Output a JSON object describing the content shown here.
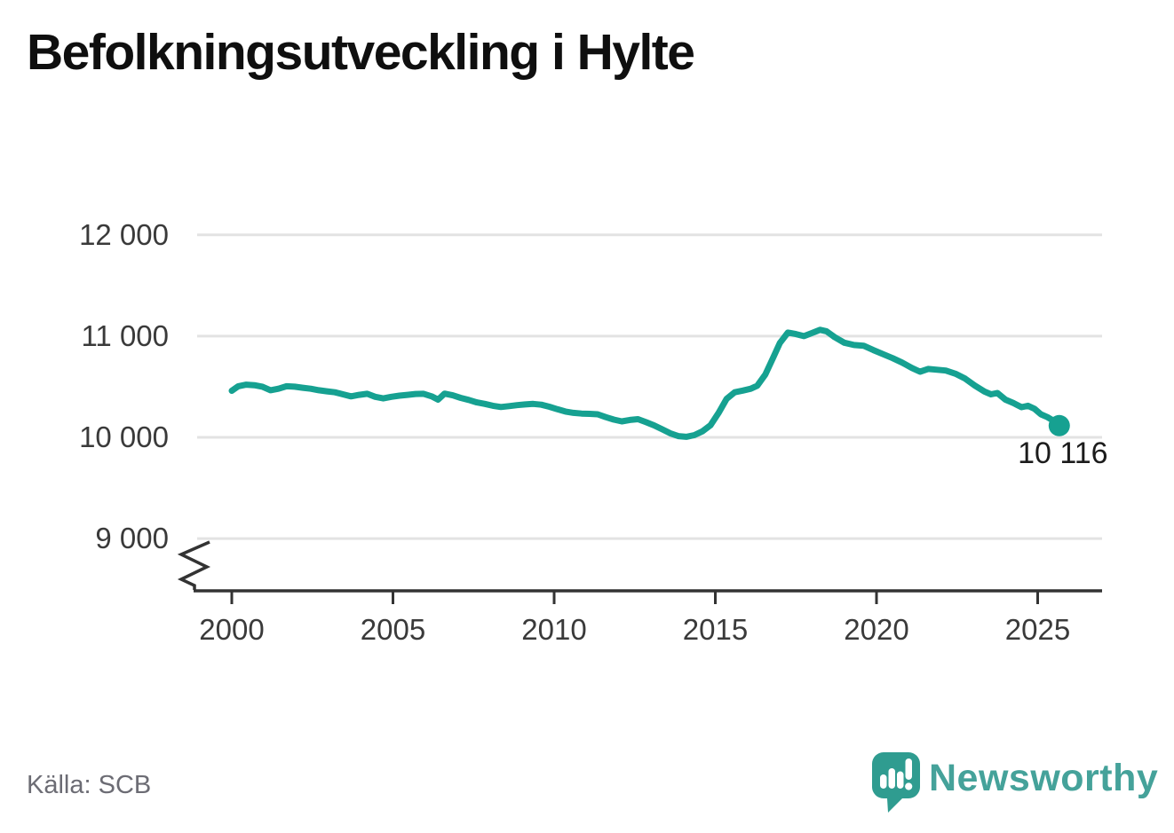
{
  "header": {
    "title": "Befolkningsutveckling i Hylte"
  },
  "footer": {
    "source": "Källa: SCB",
    "brand": {
      "name": "Newsworthy",
      "logo_icon": "newsworthy-speech-bubble-chart-icon",
      "logo_color": "#2f9c90",
      "wordmark_color": "#45a29a"
    }
  },
  "chart_data": {
    "type": "line",
    "title": "Befolkningsutveckling i Hylte",
    "xlabel": "",
    "ylabel": "",
    "x_tick_labels": [
      "2000",
      "2005",
      "2010",
      "2015",
      "2020",
      "2025"
    ],
    "x_tick_years": [
      2000,
      2005,
      2010,
      2015,
      2020,
      2025
    ],
    "y_tick_labels": [
      "12 000",
      "11 000",
      "10 000",
      "9 000"
    ],
    "y_tick_values": [
      12000,
      11000,
      10000,
      9000
    ],
    "y_axis_break": true,
    "xlim": [
      1998.8,
      2027.0
    ],
    "ylim_shown": [
      9000,
      12000
    ],
    "grid": "horizontal",
    "legend": "none",
    "line_color": "#16a191",
    "grid_color": "#e3e3e3",
    "axis_color": "#333333",
    "label_color": "#3a3a3a",
    "end_label": "10 116",
    "end_value": 10116,
    "series": [
      {
        "points": [
          [
            2000.0,
            10460
          ],
          [
            2000.2,
            10505
          ],
          [
            2000.45,
            10520
          ],
          [
            2000.7,
            10515
          ],
          [
            2000.95,
            10500
          ],
          [
            2001.2,
            10465
          ],
          [
            2001.45,
            10480
          ],
          [
            2001.7,
            10505
          ],
          [
            2001.95,
            10500
          ],
          [
            2002.2,
            10490
          ],
          [
            2002.45,
            10480
          ],
          [
            2002.7,
            10465
          ],
          [
            2002.95,
            10455
          ],
          [
            2003.2,
            10445
          ],
          [
            2003.45,
            10425
          ],
          [
            2003.7,
            10405
          ],
          [
            2003.95,
            10420
          ],
          [
            2004.2,
            10430
          ],
          [
            2004.45,
            10400
          ],
          [
            2004.7,
            10385
          ],
          [
            2004.95,
            10400
          ],
          [
            2005.2,
            10412
          ],
          [
            2005.45,
            10420
          ],
          [
            2005.7,
            10428
          ],
          [
            2005.95,
            10430
          ],
          [
            2006.2,
            10405
          ],
          [
            2006.4,
            10372
          ],
          [
            2006.6,
            10432
          ],
          [
            2006.85,
            10415
          ],
          [
            2007.1,
            10390
          ],
          [
            2007.35,
            10370
          ],
          [
            2007.6,
            10345
          ],
          [
            2007.85,
            10330
          ],
          [
            2008.1,
            10312
          ],
          [
            2008.35,
            10300
          ],
          [
            2008.6,
            10308
          ],
          [
            2008.85,
            10318
          ],
          [
            2009.1,
            10325
          ],
          [
            2009.35,
            10330
          ],
          [
            2009.6,
            10322
          ],
          [
            2009.85,
            10302
          ],
          [
            2010.1,
            10278
          ],
          [
            2010.35,
            10255
          ],
          [
            2010.6,
            10242
          ],
          [
            2010.85,
            10235
          ],
          [
            2011.1,
            10232
          ],
          [
            2011.35,
            10228
          ],
          [
            2011.6,
            10200
          ],
          [
            2011.85,
            10175
          ],
          [
            2012.1,
            10158
          ],
          [
            2012.35,
            10172
          ],
          [
            2012.6,
            10180
          ],
          [
            2012.85,
            10150
          ],
          [
            2013.1,
            10118
          ],
          [
            2013.35,
            10080
          ],
          [
            2013.6,
            10040
          ],
          [
            2013.85,
            10012
          ],
          [
            2014.1,
            10005
          ],
          [
            2014.35,
            10022
          ],
          [
            2014.6,
            10060
          ],
          [
            2014.85,
            10120
          ],
          [
            2015.1,
            10240
          ],
          [
            2015.35,
            10380
          ],
          [
            2015.6,
            10445
          ],
          [
            2015.85,
            10462
          ],
          [
            2016.1,
            10480
          ],
          [
            2016.3,
            10510
          ],
          [
            2016.55,
            10620
          ],
          [
            2016.8,
            10790
          ],
          [
            2017.0,
            10930
          ],
          [
            2017.25,
            11035
          ],
          [
            2017.5,
            11020
          ],
          [
            2017.75,
            11000
          ],
          [
            2018.0,
            11030
          ],
          [
            2018.25,
            11062
          ],
          [
            2018.45,
            11048
          ],
          [
            2018.7,
            10990
          ],
          [
            2019.0,
            10935
          ],
          [
            2019.3,
            10912
          ],
          [
            2019.6,
            10905
          ],
          [
            2019.9,
            10862
          ],
          [
            2020.2,
            10822
          ],
          [
            2020.5,
            10782
          ],
          [
            2020.8,
            10738
          ],
          [
            2021.1,
            10685
          ],
          [
            2021.35,
            10648
          ],
          [
            2021.6,
            10675
          ],
          [
            2021.85,
            10668
          ],
          [
            2022.15,
            10660
          ],
          [
            2022.45,
            10628
          ],
          [
            2022.75,
            10580
          ],
          [
            2023.05,
            10512
          ],
          [
            2023.35,
            10452
          ],
          [
            2023.55,
            10425
          ],
          [
            2023.75,
            10438
          ],
          [
            2024.0,
            10372
          ],
          [
            2024.25,
            10338
          ],
          [
            2024.5,
            10298
          ],
          [
            2024.7,
            10312
          ],
          [
            2024.9,
            10282
          ],
          [
            2025.1,
            10228
          ],
          [
            2025.3,
            10200
          ],
          [
            2025.5,
            10162
          ],
          [
            2025.67,
            10116
          ]
        ]
      }
    ]
  }
}
